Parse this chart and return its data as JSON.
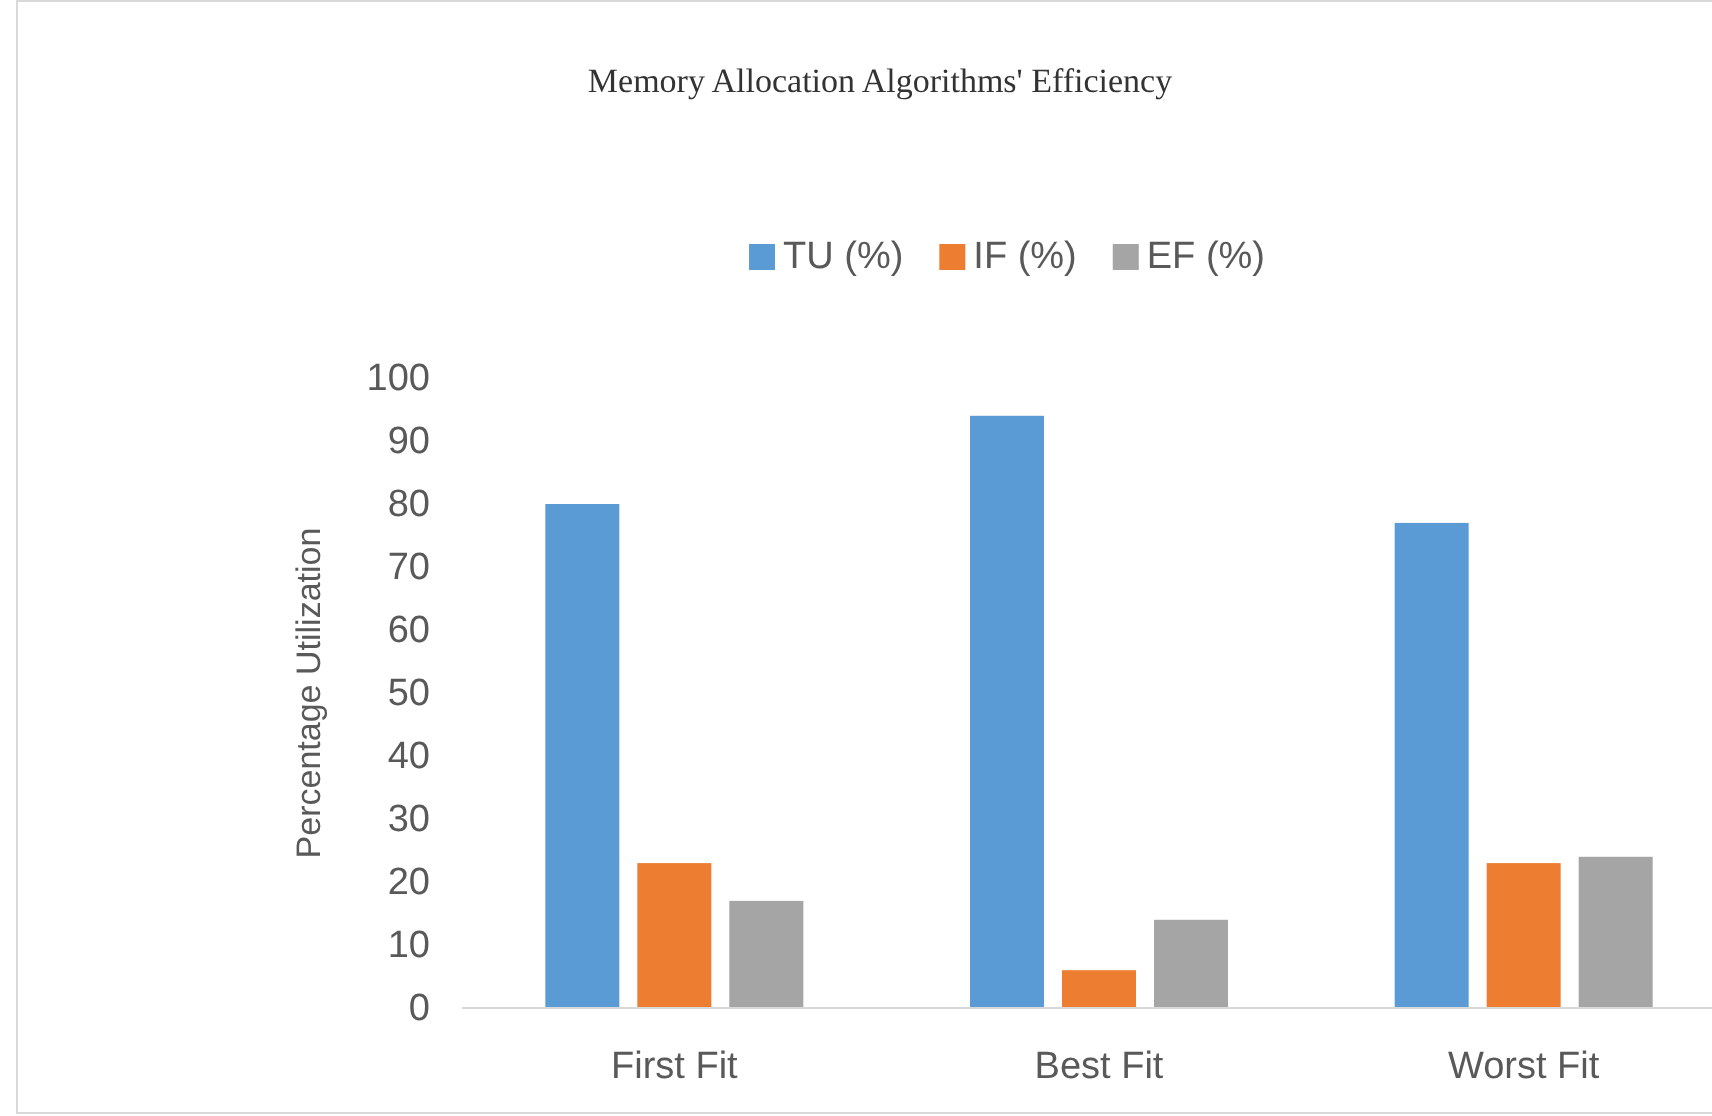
{
  "chart_data": {
    "type": "bar",
    "title": "Memory Allocation Algorithms' Efficiency",
    "ylabel": "Percentage Utilization",
    "categories": [
      "First Fit",
      "Best Fit",
      "Worst Fit"
    ],
    "series": [
      {
        "name": "TU (%)",
        "color": "#5b9bd5",
        "values": [
          80,
          94,
          77
        ]
      },
      {
        "name": "IF (%)",
        "color": "#ed7d31",
        "values": [
          23,
          6,
          23
        ]
      },
      {
        "name": "EF (%)",
        "color": "#a5a5a5",
        "values": [
          17,
          14,
          24
        ]
      }
    ],
    "ylim": [
      0,
      100
    ],
    "yticks": [
      0,
      10,
      20,
      30,
      40,
      50,
      60,
      70,
      80,
      90,
      100
    ],
    "grid": false,
    "legend": "top"
  }
}
